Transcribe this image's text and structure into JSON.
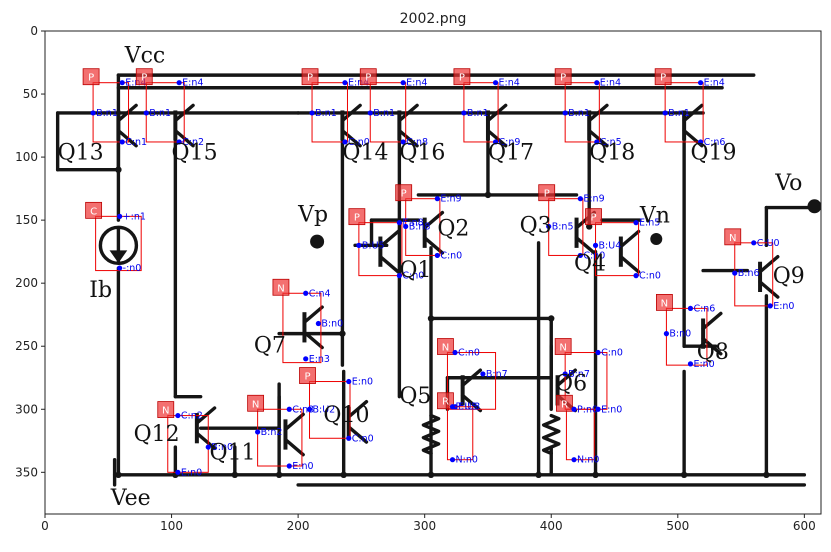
{
  "title": "2002.png",
  "x_ticks": [
    "0",
    "100",
    "200",
    "300",
    "400",
    "500",
    "600"
  ],
  "y_ticks": [
    "0",
    "50",
    "100",
    "150",
    "200",
    "250",
    "300",
    "350"
  ],
  "circuit_labels": {
    "vcc": "Vcc",
    "vee": "Vee",
    "vp": "Vp",
    "vn": "Vn",
    "vo": "Vo",
    "ib": "Ib",
    "q1": "Q1",
    "q2": "Q2",
    "q3": "Q3",
    "q4": "Q4",
    "q5": "Q5",
    "q6": "Q6",
    "q7": "Q7",
    "q8": "Q8",
    "q9": "Q9",
    "q10": "Q10",
    "q11": "Q11",
    "q12": "Q12",
    "q13": "Q13",
    "q14": "Q14",
    "q15": "Q15",
    "q16": "Q16",
    "q17": "Q17",
    "q18": "Q18",
    "q19": "Q19"
  },
  "annotations": [
    {
      "type": "P",
      "pins": [
        {
          "t": "E:n4"
        },
        {
          "t": "B:n1"
        },
        {
          "t": "C:n1"
        }
      ]
    },
    {
      "type": "P",
      "pins": [
        {
          "t": "E:n4"
        },
        {
          "t": "B:n1"
        },
        {
          "t": "C:n2"
        }
      ]
    },
    {
      "type": "P",
      "pins": [
        {
          "t": "E:n4"
        },
        {
          "t": "B:n1"
        },
        {
          "t": "C:n0"
        }
      ]
    },
    {
      "type": "P",
      "pins": [
        {
          "t": "E:n4"
        },
        {
          "t": "B:n1"
        },
        {
          "t": "C:n8"
        }
      ]
    },
    {
      "type": "P",
      "pins": [
        {
          "t": "E:n4"
        },
        {
          "t": "B:n1"
        },
        {
          "t": "C:n9"
        }
      ]
    },
    {
      "type": "P",
      "pins": [
        {
          "t": "E:n4"
        },
        {
          "t": "B:n1"
        },
        {
          "t": "C:n5"
        }
      ]
    },
    {
      "type": "P",
      "pins": [
        {
          "t": "E:n4"
        },
        {
          "t": "B:n1"
        },
        {
          "t": "C:n6"
        }
      ]
    },
    {
      "type": "C",
      "pins": [
        {
          "t": "+:n1"
        },
        {
          "t": "-:n0"
        }
      ]
    },
    {
      "type": "P",
      "pins": [
        {
          "t": "E:n9"
        },
        {
          "t": "B:n8"
        },
        {
          "t": "C:n0"
        }
      ]
    },
    {
      "type": "P",
      "pins": [
        {
          "t": "E:n8"
        },
        {
          "t": "B:U5"
        },
        {
          "t": "C:n0"
        }
      ]
    },
    {
      "type": "P",
      "pins": [
        {
          "t": "E:n9"
        },
        {
          "t": "B:n5"
        },
        {
          "t": "C:n0"
        }
      ]
    },
    {
      "type": "P",
      "pins": [
        {
          "t": "E:n5"
        },
        {
          "t": "B:U4"
        },
        {
          "t": "C:n0"
        }
      ]
    },
    {
      "type": "N",
      "pins": [
        {
          "t": "C:n4"
        },
        {
          "t": "B:n0"
        },
        {
          "t": "E:n3"
        }
      ]
    },
    {
      "type": "N",
      "pins": [
        {
          "t": "C:U0"
        },
        {
          "t": "B:n6"
        },
        {
          "t": "E:n0"
        }
      ]
    },
    {
      "type": "N",
      "pins": [
        {
          "t": "C:n6"
        },
        {
          "t": "B:n0"
        },
        {
          "t": "E:n0"
        }
      ]
    },
    {
      "type": "N",
      "pins": [
        {
          "t": "C:n0"
        },
        {
          "t": "B:n7"
        },
        {
          "t": "E:U3"
        }
      ]
    },
    {
      "type": "N",
      "pins": [
        {
          "t": "C:n0"
        },
        {
          "t": "B:n7"
        },
        {
          "t": "E:n0"
        }
      ]
    },
    {
      "type": "P",
      "pins": [
        {
          "t": "E:n0"
        },
        {
          "t": "B:U2"
        },
        {
          "t": "C:n0"
        }
      ]
    },
    {
      "type": "N",
      "pins": [
        {
          "t": "C:n3"
        },
        {
          "t": "B:n2"
        },
        {
          "t": "E:n0"
        }
      ]
    },
    {
      "type": "N",
      "pins": [
        {
          "t": "C:n2"
        },
        {
          "t": "B:n0"
        },
        {
          "t": "E:n0"
        }
      ]
    },
    {
      "type": "R",
      "pins": [
        {
          "t": "P:U3"
        },
        {
          "t": "N:n0"
        }
      ]
    },
    {
      "type": "R",
      "pins": [
        {
          "t": "P:n0"
        },
        {
          "t": "N:n0"
        }
      ]
    }
  ]
}
